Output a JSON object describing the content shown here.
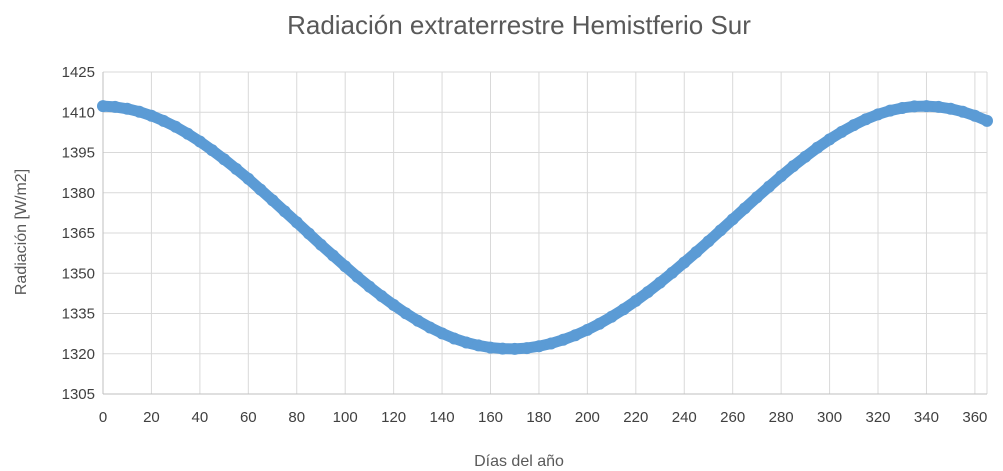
{
  "chart_data": {
    "type": "scatter",
    "title": "Radiación extraterrestre Hemistferio Sur",
    "xlabel": "Días del año",
    "ylabel": "Radiación [W/m2]",
    "xlim": [
      0,
      365
    ],
    "ylim": [
      1305,
      1425
    ],
    "x_ticks": [
      0,
      20,
      40,
      60,
      80,
      100,
      120,
      140,
      160,
      180,
      200,
      220,
      240,
      260,
      280,
      300,
      320,
      340,
      360
    ],
    "y_ticks": [
      1305,
      1320,
      1335,
      1350,
      1365,
      1380,
      1395,
      1410,
      1425
    ],
    "grid": true,
    "legend": "none",
    "series_color": "#5b9bd5",
    "series": [
      {
        "x": [
          0,
          5,
          10,
          15,
          20,
          25,
          30,
          35,
          40,
          45,
          50,
          55,
          60,
          65,
          70,
          75,
          80,
          85,
          90,
          95,
          100,
          105,
          110,
          115,
          120,
          125,
          130,
          135,
          140,
          145,
          150,
          155,
          160,
          165,
          170,
          175,
          180,
          185,
          190,
          195,
          200,
          205,
          210,
          215,
          220,
          225,
          230,
          235,
          240,
          245,
          250,
          255,
          260,
          265,
          270,
          275,
          280,
          285,
          290,
          295,
          300,
          305,
          310,
          315,
          320,
          325,
          330,
          335,
          340,
          345,
          350,
          355,
          360,
          365
        ],
        "y": [
          1412.3,
          1412.0,
          1411.3,
          1410.2,
          1408.7,
          1406.8,
          1404.6,
          1402.0,
          1399.1,
          1395.9,
          1392.5,
          1388.9,
          1385.2,
          1381.2,
          1377.2,
          1373.1,
          1369.0,
          1364.8,
          1360.6,
          1356.6,
          1352.6,
          1348.7,
          1345.0,
          1341.5,
          1338.2,
          1335.1,
          1332.3,
          1329.8,
          1327.6,
          1325.7,
          1324.2,
          1323.1,
          1322.3,
          1321.9,
          1321.8,
          1322.1,
          1322.8,
          1323.8,
          1325.2,
          1326.9,
          1328.9,
          1331.2,
          1333.8,
          1336.6,
          1339.7,
          1343.0,
          1346.5,
          1350.2,
          1354.0,
          1357.9,
          1361.9,
          1366.0,
          1370.1,
          1374.2,
          1378.3,
          1382.3,
          1386.2,
          1389.9,
          1393.4,
          1396.8,
          1399.9,
          1402.7,
          1405.2,
          1407.4,
          1409.2,
          1410.6,
          1411.6,
          1412.2,
          1412.3,
          1412.0,
          1411.3,
          1410.2,
          1408.7,
          1406.8
        ]
      }
    ]
  }
}
